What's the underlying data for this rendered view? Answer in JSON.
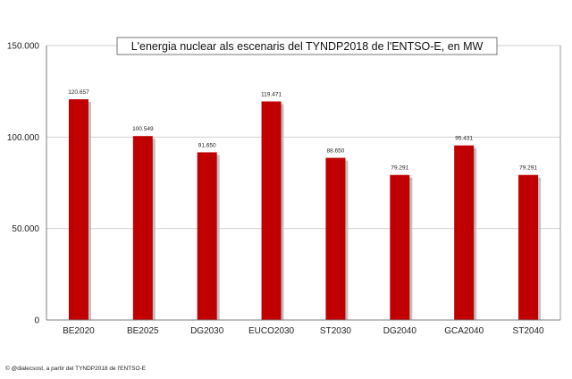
{
  "chart_data": {
    "type": "bar",
    "title": "L'energia nuclear als escenaris del TYNDP2018 de l'ENTSO-E, en MW",
    "categories": [
      "BE2020",
      "BE2025",
      "DG2030",
      "EUCO2030",
      "ST2030",
      "DG2040",
      "GCA2040",
      "ST2040"
    ],
    "values": [
      120657,
      100549,
      91650,
      119471,
      88650,
      79291,
      95431,
      79291
    ],
    "value_labels": [
      "120.657",
      "100.549",
      "91.650",
      "119.471",
      "88.650",
      "79.291",
      "95.431",
      "79.291"
    ],
    "yticks": [
      "0",
      "50.000",
      "100.000",
      "150.000"
    ],
    "ytick_values": [
      0,
      50000,
      100000,
      150000
    ],
    "ylim": [
      0,
      150000
    ],
    "xlabel": "",
    "ylabel": "",
    "grid": true,
    "legend": "none",
    "colors": {
      "bar": "#c00000",
      "shadow": "#c0c0c0",
      "grid": "#d0d0d0",
      "axis": "#7f7f7f"
    }
  },
  "credit": "© @dialecsost, a partir del TYNDP2018 de l'ENTSO-E"
}
